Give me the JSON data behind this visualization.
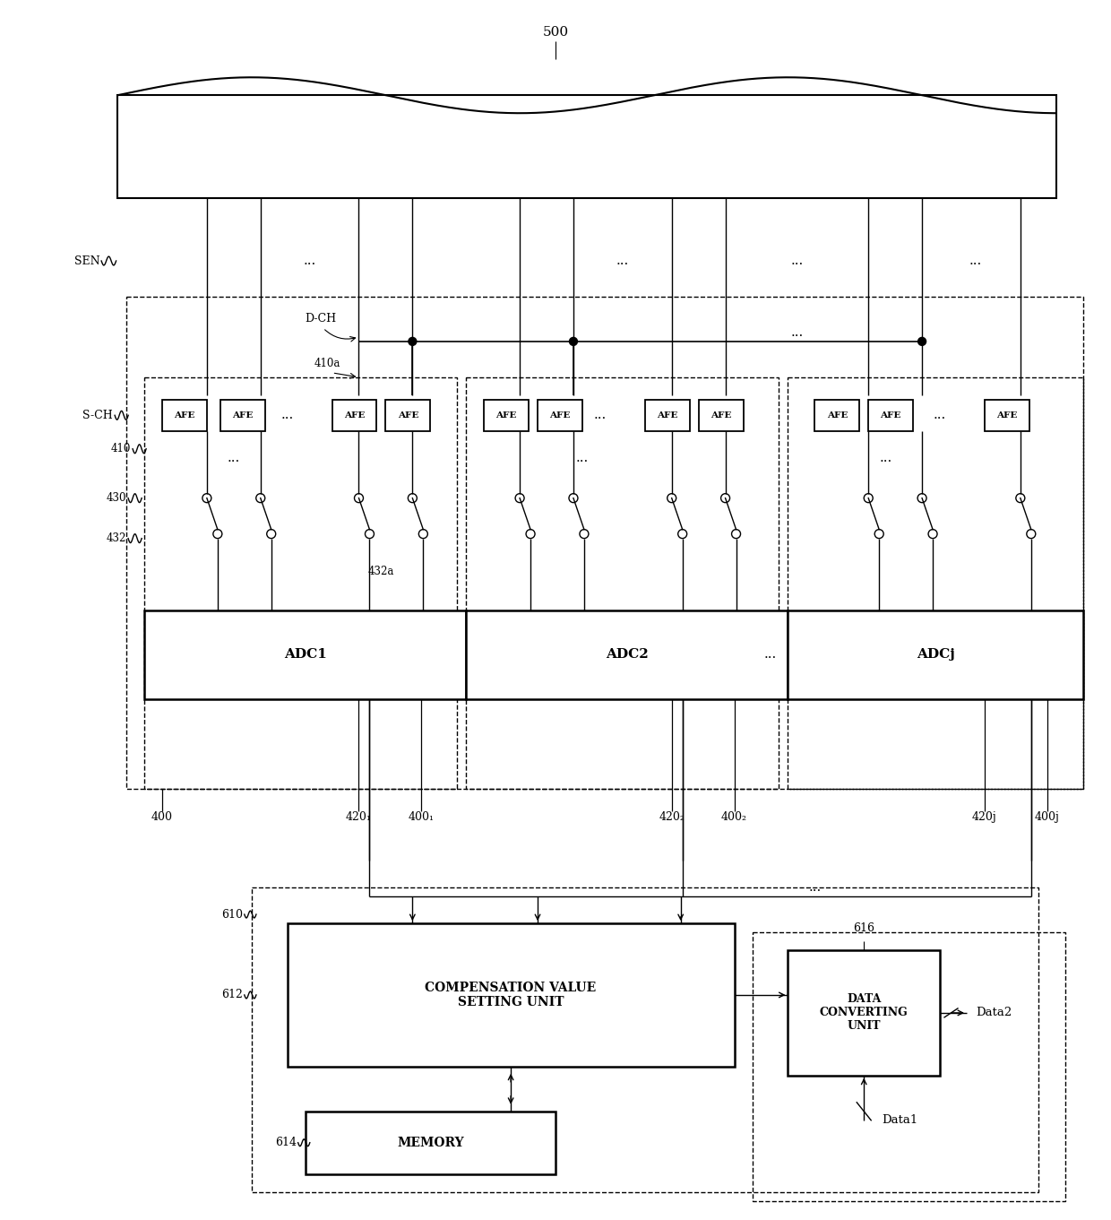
{
  "bg_color": "#ffffff",
  "fig_width": 12.4,
  "fig_height": 13.61,
  "label_500": "500",
  "label_SEN": "SEN",
  "label_SCH": "S-CH",
  "label_DCH": "D-CH",
  "label_410": "410",
  "label_410a": "410a",
  "label_430": "430",
  "label_432": "432",
  "label_432a": "432a",
  "label_400": "400",
  "label_4201": "420₁",
  "label_4001": "400₁",
  "label_4202": "420₂",
  "label_4002": "400₂",
  "label_420j": "420j",
  "label_400j": "400j",
  "label_610": "610",
  "label_612": "612",
  "label_614": "614",
  "label_616": "616",
  "label_ADC1": "ADC1",
  "label_ADC2": "ADC2",
  "label_ADCj": "ADCj",
  "label_AFE": "AFE",
  "label_COMP": "COMPENSATION VALUE\nSETTING UNIT",
  "label_MEM": "MEMORY",
  "label_DCU": "DATA\nCONVERTING\nUNIT",
  "label_Data1": "Data1",
  "label_Data2": "Data2"
}
